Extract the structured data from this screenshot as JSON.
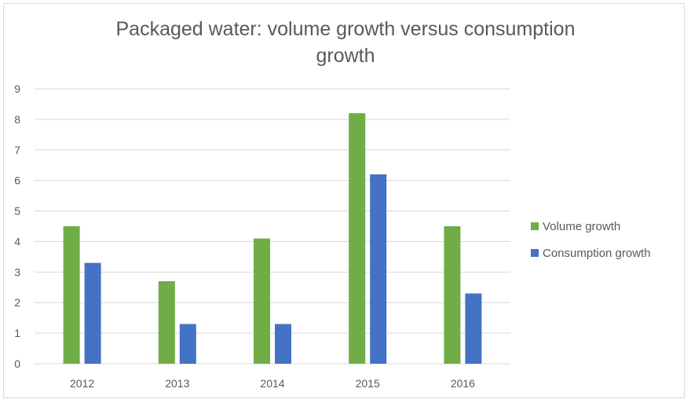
{
  "chart_data": {
    "type": "bar",
    "title_lines": [
      "Packaged water: volume growth versus consumption",
      "growth"
    ],
    "categories": [
      "2012",
      "2013",
      "2014",
      "2015",
      "2016"
    ],
    "series": [
      {
        "name": "Volume growth",
        "color": "#70ad47",
        "values": [
          4.5,
          2.7,
          4.1,
          8.2,
          4.5
        ]
      },
      {
        "name": "Consumption growth",
        "color": "#4472c4",
        "values": [
          3.3,
          1.3,
          1.3,
          6.2,
          2.3
        ]
      }
    ],
    "ylim": [
      0,
      9
    ],
    "yticks": [
      "0",
      "1",
      "2",
      "3",
      "4",
      "5",
      "6",
      "7",
      "8",
      "9"
    ],
    "grid": true,
    "legend_position": "right",
    "gridline_color": "#d9d9d9",
    "axis_color": "#d9d9d9"
  }
}
